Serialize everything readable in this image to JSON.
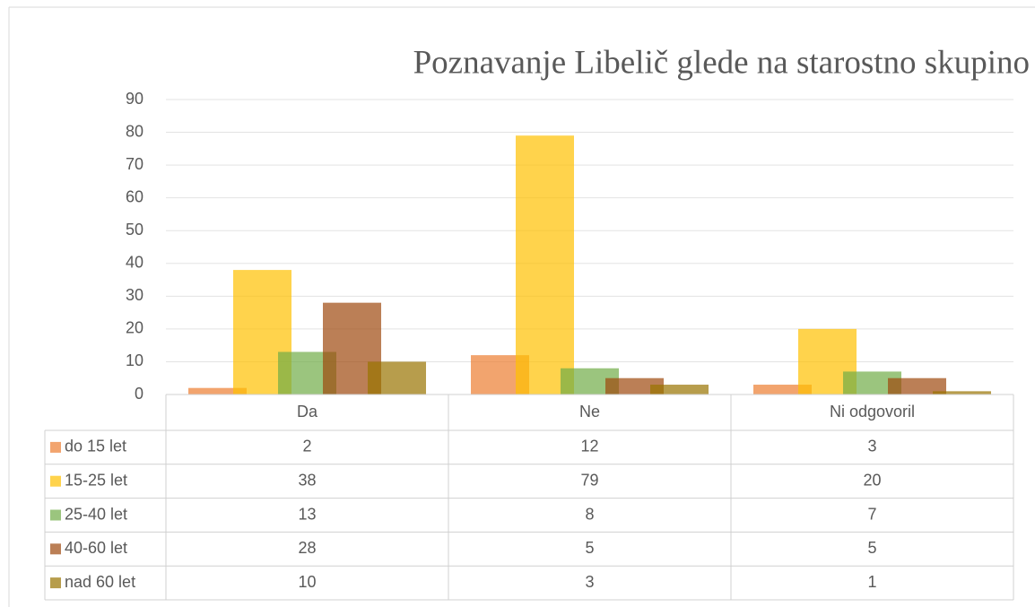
{
  "chart_data": {
    "type": "bar",
    "title": "Poznavanje Libelič glede na starostno skupino",
    "categories": [
      "Da",
      "Ne",
      "Ni odgovoril"
    ],
    "series": [
      {
        "name": "do 15 let",
        "color": "#ED7D31",
        "values": [
          2,
          12,
          3
        ]
      },
      {
        "name": "15-25 let",
        "color": "#FFC000",
        "values": [
          38,
          79,
          20
        ]
      },
      {
        "name": "25-40 let",
        "color": "#70AD47",
        "values": [
          13,
          8,
          7
        ]
      },
      {
        "name": "40-60 let",
        "color": "#9E480E",
        "values": [
          28,
          5,
          5
        ]
      },
      {
        "name": "nad 60 let",
        "color": "#997300",
        "values": [
          10,
          3,
          1
        ]
      }
    ],
    "ylim": [
      0,
      90
    ],
    "yticks": [
      0,
      10,
      20,
      30,
      40,
      50,
      60,
      70,
      80,
      90
    ],
    "grid": true,
    "data_table": true
  }
}
